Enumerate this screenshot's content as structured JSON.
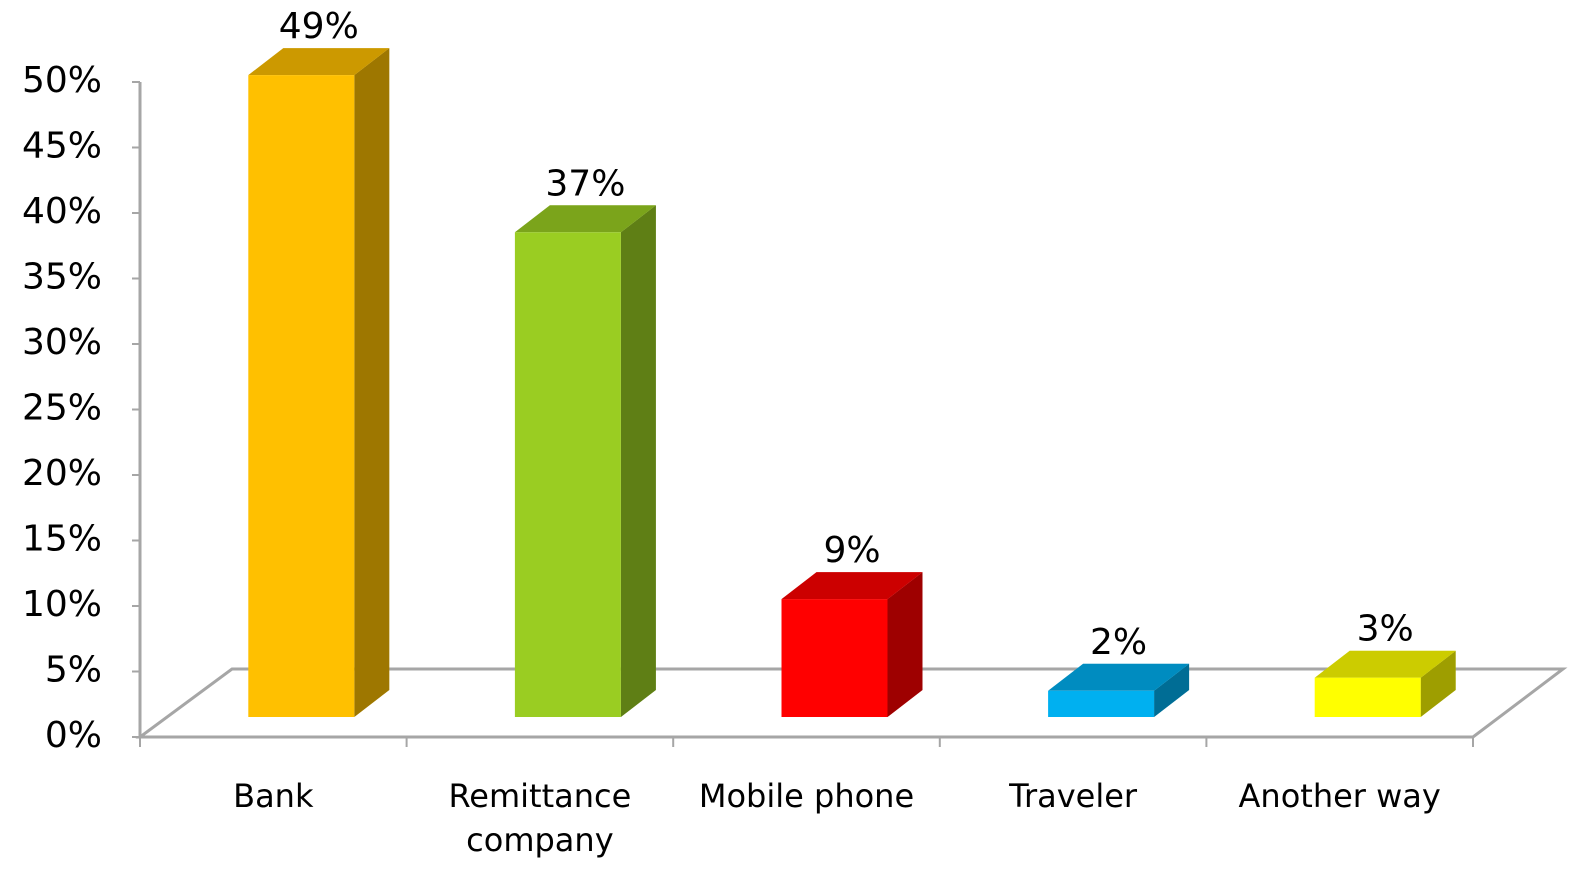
{
  "chart_data": {
    "type": "bar3d",
    "categories": [
      "Bank",
      "Remittance company",
      "Mobile phone",
      "Traveler",
      "Another way"
    ],
    "values": [
      49,
      37,
      9,
      2,
      3
    ],
    "value_labels": [
      "49%",
      "37%",
      "9%",
      "2%",
      "3%"
    ],
    "colors": [
      "#FFC000",
      "#9ACD22",
      "#FF0000",
      "#00B0F0",
      "#FFFF00"
    ],
    "ylim": [
      0,
      50
    ],
    "yticks": [
      {
        "value": 0,
        "label": "0%"
      },
      {
        "value": 5,
        "label": "5%"
      },
      {
        "value": 10,
        "label": "10%"
      },
      {
        "value": 15,
        "label": "15%"
      },
      {
        "value": 20,
        "label": "20%"
      },
      {
        "value": 25,
        "label": "25%"
      },
      {
        "value": 30,
        "label": "30%"
      },
      {
        "value": 35,
        "label": "35%"
      },
      {
        "value": 40,
        "label": "40%"
      },
      {
        "value": 45,
        "label": "45%"
      },
      {
        "value": 50,
        "label": "50%"
      }
    ]
  }
}
